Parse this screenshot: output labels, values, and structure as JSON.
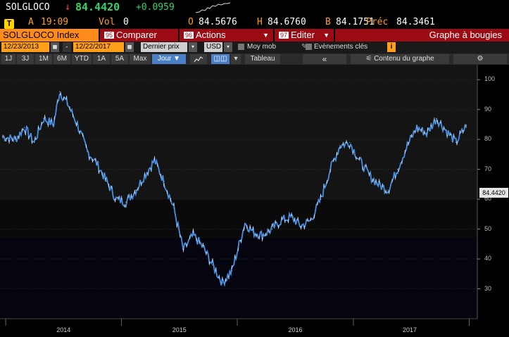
{
  "header": {
    "ticker": "SOLGLOCO",
    "arrow": "↓",
    "last_price": "84.4420",
    "change": "+0.0959",
    "time_prefix": "A",
    "time": "19:09",
    "vol_label": "Vol",
    "vol_value": "0",
    "open_label": "O",
    "open_value": "84.5676",
    "high_label": "H",
    "high_value": "84.6760",
    "low_label": "B",
    "low_value": "84.1751",
    "prev_label": "Préc",
    "prev_value": "84.3461",
    "t_icon": "T"
  },
  "menu": {
    "security": "SOLGLOCO Index",
    "compare": {
      "num": "95",
      "label": "Comparer"
    },
    "actions": {
      "num": "96",
      "label": "Actions"
    },
    "edit": {
      "num": "97",
      "label": "Editer"
    },
    "chart_type": "Graphe à bougies"
  },
  "toolbar": {
    "start_date": "12/23/2013",
    "dash": "-",
    "end_date": "12/22/2017",
    "price_field": "Dernier prix",
    "currency": "USD",
    "moving_avg": "Moy mob",
    "events": "Evènements clés",
    "info_icon": "i"
  },
  "periods": {
    "items": [
      "1J",
      "3J",
      "1M",
      "6M",
      "YTD",
      "1A",
      "5A",
      "Max"
    ],
    "frequency": "Jour ▼",
    "table": "Tableau",
    "collapse": "«",
    "contents": "Contenu du graphe",
    "gear": "⚙"
  },
  "colors": {
    "accent_orange": "#ff9f1a",
    "menu_red": "#9c0a14",
    "positive_green": "#37d26b",
    "negative_red": "#ff3b30",
    "line_blue": "#4a90e2"
  },
  "chart_data": {
    "type": "line",
    "title": "",
    "y_ticks": [
      30,
      40,
      50,
      60,
      70,
      80,
      90,
      100
    ],
    "x_labels": [
      "2014",
      "2015",
      "2016",
      "2017"
    ],
    "ylim": [
      20,
      105
    ],
    "last_value_label": "84.4420",
    "x": [
      "2013-12-23",
      "2014-02-01",
      "2014-03-01",
      "2014-04-01",
      "2014-05-01",
      "2014-06-01",
      "2014-06-20",
      "2014-07-15",
      "2014-08-15",
      "2014-09-15",
      "2014-10-15",
      "2014-11-15",
      "2014-12-15",
      "2015-01-15",
      "2015-02-15",
      "2015-03-15",
      "2015-04-15",
      "2015-05-15",
      "2015-06-15",
      "2015-07-15",
      "2015-08-15",
      "2015-09-15",
      "2015-10-15",
      "2015-11-15",
      "2015-12-15",
      "2016-01-10",
      "2016-01-25",
      "2016-02-20",
      "2016-03-20",
      "2016-04-20",
      "2016-05-20",
      "2016-06-20",
      "2016-07-20",
      "2016-08-20",
      "2016-09-20",
      "2016-10-20",
      "2016-11-20",
      "2016-12-20",
      "2017-01-20",
      "2017-02-20",
      "2017-03-20",
      "2017-04-20",
      "2017-05-20",
      "2017-06-20",
      "2017-07-20",
      "2017-08-20",
      "2017-09-20",
      "2017-10-20",
      "2017-11-20",
      "2017-12-22"
    ],
    "series": [
      {
        "values": [
          81,
          80,
          84,
          79,
          87,
          85,
          96,
          92,
          85,
          76,
          72,
          66,
          60,
          59,
          63,
          68,
          73,
          66,
          57,
          43,
          48,
          44,
          38,
          32,
          36,
          46,
          52,
          49,
          48,
          50,
          53,
          54,
          51,
          53,
          60,
          70,
          78,
          79,
          73,
          68,
          65,
          63,
          70,
          78,
          84,
          82,
          87,
          83,
          79,
          84.44
        ]
      }
    ]
  }
}
